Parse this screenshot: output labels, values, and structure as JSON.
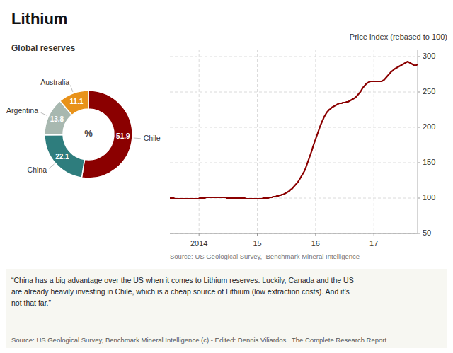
{
  "chart_data": [
    {
      "type": "line",
      "title": "Lithium",
      "ylabel": "Price index (rebased to 100)",
      "x": [
        2013.5,
        2013.5214,
        2013.5427,
        2013.5641,
        2013.5854,
        2013.6068,
        2013.6281,
        2013.6495,
        2013.6709,
        2013.6922,
        2013.7136,
        2013.7349,
        2013.7563,
        2013.7776,
        2013.799,
        2013.8204,
        2013.8417,
        2013.8631,
        2013.8844,
        2013.9058,
        2013.9271,
        2013.9485,
        2013.9698,
        2013.9912,
        2014.0126,
        2014.0339,
        2014.0553,
        2014.0766,
        2014.098,
        2014.1193,
        2014.1407,
        2014.1621,
        2014.1834,
        2014.2048,
        2014.2261,
        2014.2475,
        2014.2688,
        2014.2902,
        2014.3116,
        2014.3329,
        2014.3543,
        2014.3756,
        2014.397,
        2014.4183,
        2014.4397,
        2014.4611,
        2014.4824,
        2014.5038,
        2014.5251,
        2014.5465,
        2014.5678,
        2014.5892,
        2014.6106,
        2014.6319,
        2014.6533,
        2014.6746,
        2014.696,
        2014.7173,
        2014.7387,
        2014.7601,
        2014.7814,
        2014.8028,
        2014.8241,
        2014.8455,
        2014.8668,
        2014.8882,
        2014.9095,
        2014.9309,
        2014.9523,
        2014.9736,
        2014.995,
        2015.0163,
        2015.0377,
        2015.059,
        2015.0804,
        2015.1018,
        2015.1231,
        2015.1445,
        2015.1658,
        2015.1872,
        2015.2085,
        2015.2299,
        2015.2513,
        2015.2726,
        2015.294,
        2015.3153,
        2015.3367,
        2015.358,
        2015.3794,
        2015.4008,
        2015.4221,
        2015.4435,
        2015.4648,
        2015.4862,
        2015.5075,
        2015.5289,
        2015.5503,
        2015.5716,
        2015.593,
        2015.6143,
        2015.6357,
        2015.657,
        2015.6784,
        2015.6997,
        2015.7211,
        2015.7425,
        2015.7638,
        2015.7852,
        2015.8065,
        2015.8279,
        2015.8492,
        2015.8706,
        2015.892,
        2015.9133,
        2015.9347,
        2015.956,
        2015.9774,
        2015.9987,
        2016.0201,
        2016.0415,
        2016.0628,
        2016.0842,
        2016.1055,
        2016.1269,
        2016.1482,
        2016.1696,
        2016.191,
        2016.2123,
        2016.2337,
        2016.255,
        2016.2764,
        2016.2977,
        2016.3191,
        2016.3405,
        2016.3618,
        2016.3832,
        2016.4045,
        2016.4259,
        2016.4472,
        2016.4686,
        2016.4899,
        2016.5113,
        2016.5327,
        2016.554,
        2016.5754,
        2016.5967,
        2016.6181,
        2016.6394,
        2016.6608,
        2016.6822,
        2016.7035,
        2016.7249,
        2016.7462,
        2016.7676,
        2016.7889,
        2016.8103,
        2016.8317,
        2016.853,
        2016.8744,
        2016.8957,
        2016.9171,
        2016.9384,
        2016.9598,
        2016.9812,
        2017.0025,
        2017.0239,
        2017.0452,
        2017.0666,
        2017.0879,
        2017.1093,
        2017.1307,
        2017.152,
        2017.1734,
        2017.1947,
        2017.2161,
        2017.2374,
        2017.2588,
        2017.2802,
        2017.3015,
        2017.3229,
        2017.3442,
        2017.3656,
        2017.3869,
        2017.4083,
        2017.4296,
        2017.451,
        2017.4724,
        2017.4937,
        2017.5151,
        2017.5364,
        2017.5578,
        2017.5791,
        2017.6005,
        2017.6219,
        2017.6432,
        2017.6646,
        2017.6859,
        2017.7073,
        2017.7286,
        2017.75
      ],
      "values": [
        100,
        100,
        100,
        100,
        99,
        99,
        99,
        99,
        99,
        99,
        99,
        99,
        99,
        99,
        99,
        99,
        99,
        99,
        99,
        99,
        99,
        99,
        99,
        99,
        100,
        100,
        100,
        100,
        100,
        101,
        101,
        101,
        101,
        101,
        101,
        101,
        101,
        101,
        101,
        101,
        101,
        101,
        101,
        101,
        101,
        101,
        100,
        100,
        100,
        100,
        100,
        100,
        100,
        100,
        100,
        100,
        100,
        100,
        100,
        100,
        100,
        99,
        99,
        99,
        99,
        99,
        99,
        99,
        99,
        99,
        99,
        99,
        99,
        99,
        99,
        100,
        100,
        100,
        100,
        100,
        101,
        101,
        101,
        102,
        102,
        102,
        103,
        103,
        104,
        104,
        105,
        105,
        106,
        107,
        108,
        109,
        110,
        112,
        113,
        115,
        117,
        119,
        121,
        123,
        126,
        129,
        132,
        135,
        138,
        142,
        147,
        152,
        157,
        162,
        167,
        173,
        178,
        183,
        188,
        193,
        198,
        203,
        207,
        211,
        215,
        218,
        221,
        223,
        225,
        226,
        228,
        229,
        230,
        231,
        232,
        233,
        234,
        234,
        234,
        235,
        235,
        235,
        236,
        236,
        237,
        238,
        239,
        240,
        241,
        242,
        244,
        246,
        248,
        250,
        253,
        256,
        258,
        260,
        262,
        263,
        264,
        265,
        265,
        265,
        265,
        265,
        265,
        265,
        265,
        265,
        265,
        266,
        267,
        269,
        271,
        273,
        275,
        277,
        279,
        280,
        282,
        283,
        284,
        285,
        286,
        287,
        288,
        289,
        290,
        291,
        292,
        293,
        292,
        291,
        290,
        289,
        288,
        287,
        288,
        289
      ],
      "color": "#8B0000",
      "xlim": [
        2013.5,
        2017.75
      ],
      "xticks": [
        2014,
        {
          "value": 2015,
          "label": "15"
        },
        {
          "value": 2016,
          "label": "16"
        },
        {
          "value": 2017,
          "label": "17"
        }
      ],
      "ylim": [
        50,
        310
      ],
      "yticks": [
        50,
        100,
        150,
        200,
        250,
        300
      ],
      "grid": true,
      "annotations": [
        "Source: US Geological Survey,  Benchmark Mineral Intelligence",
        "“China has a big advantage over the US when it comes to Lithium reserves. Luckily, Canada and the US",
        "are already heavily investing in Chile, which is a cheap source of Lithium (low extraction costs). And it’s",
        "not that far.”",
        "Source: US Geological Survey, Benchmark Mineral Intelligence (c) - Edited: Dennis Viliardos   The Complete Research Report"
      ]
    },
    {
      "type": "pie",
      "title": "Global reserves",
      "categories": [
        "Chile",
        "China",
        "Argentina",
        "Australia"
      ],
      "values": [
        51.9,
        22.1,
        13.8,
        11.1
      ],
      "colors": [
        "#8B0000",
        "#2E7D7D",
        "#A8B8B0",
        "#E8921A"
      ],
      "data_labels": true,
      "annotations": [
        "%"
      ]
    }
  ]
}
